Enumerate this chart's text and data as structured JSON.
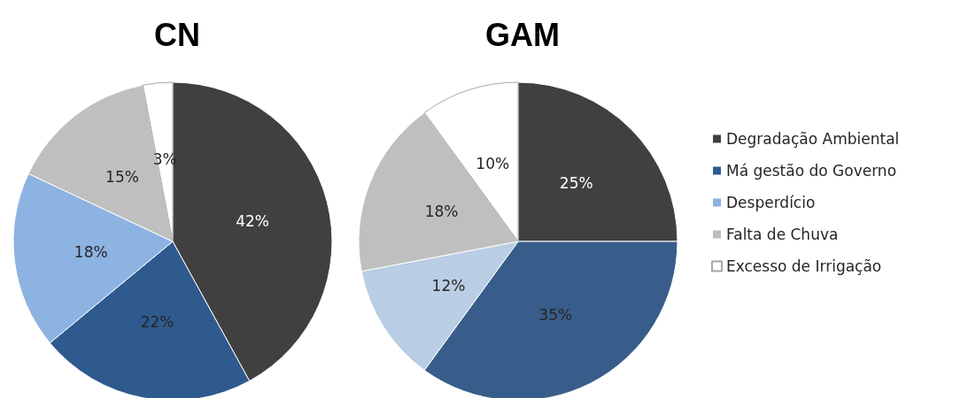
{
  "chart_data": {
    "type": "pie",
    "categories": [
      "Degradação Ambiental",
      "Má gestão do Governo",
      "Desperdício",
      "Falta de Chuva",
      "Excesso de Irrigação"
    ],
    "legend": "right",
    "series": [
      {
        "name": "CN",
        "values": [
          42,
          22,
          18,
          15,
          3
        ],
        "value_labels": [
          "42%",
          "22%",
          "18%",
          "15%",
          "3%"
        ],
        "colors": [
          "#404040",
          "#2f5a8e",
          "#8db3e2",
          "#bfbfbf",
          "#ffffff"
        ]
      },
      {
        "name": "GAM",
        "values": [
          25,
          35,
          12,
          18,
          10
        ],
        "value_labels": [
          "25%",
          "35%",
          "12%",
          "18%",
          "10%"
        ],
        "colors": [
          "#404040",
          "#385d8a",
          "#b9cde5",
          "#bfbfbf",
          "#ffffff"
        ]
      }
    ]
  }
}
